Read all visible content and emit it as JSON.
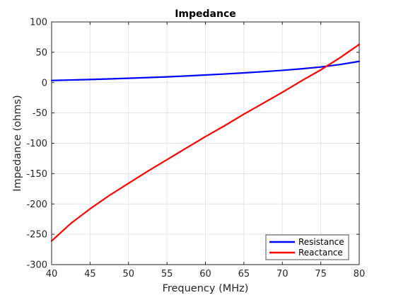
{
  "chart_data": {
    "type": "line",
    "title": "Impedance",
    "xlabel": "Frequency (MHz)",
    "ylabel": "Impedance (ohms)",
    "xlim": [
      40,
      80
    ],
    "ylim": [
      -300,
      100
    ],
    "xticks": [
      40,
      45,
      50,
      55,
      60,
      65,
      70,
      75,
      80
    ],
    "yticks": [
      -300,
      -250,
      -200,
      -150,
      -100,
      -50,
      0,
      50,
      100
    ],
    "grid": true,
    "legend_position": "bottom-right",
    "x": [
      40,
      42.5,
      45,
      47.5,
      50,
      52.5,
      55,
      57.5,
      60,
      62.5,
      65,
      67.5,
      70,
      72.5,
      75,
      77.5,
      80
    ],
    "series": [
      {
        "name": "Resistance",
        "color": "#0000ff",
        "values": [
          3.5,
          4.3,
          5.1,
          6.1,
          7.1,
          8.3,
          9.5,
          10.9,
          12.5,
          14.2,
          16.0,
          18.0,
          20.2,
          22.7,
          25.7,
          29.8,
          35.0
        ]
      },
      {
        "name": "Reactance",
        "color": "#ff0000",
        "values": [
          -261,
          -232,
          -208,
          -186,
          -166,
          -146,
          -127,
          -108,
          -89,
          -71,
          -52,
          -34,
          -16,
          3,
          21,
          41,
          63
        ]
      }
    ]
  }
}
